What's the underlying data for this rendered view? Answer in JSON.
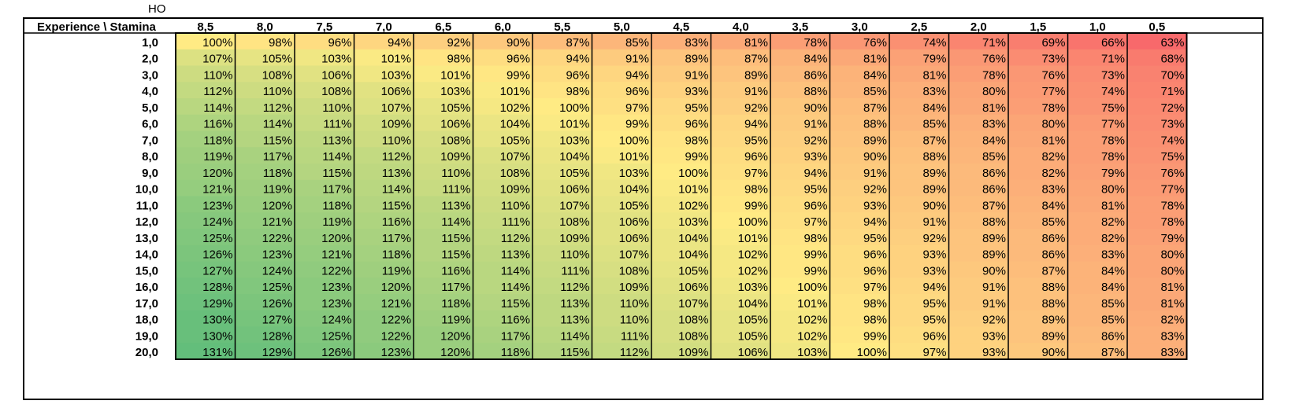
{
  "corner_label": "HO",
  "axis_title": "Experience \\ Stamina",
  "chart_data": {
    "type": "heatmap",
    "title": "",
    "xlabel": "Stamina",
    "ylabel": "Experience",
    "x": [
      "8,5",
      "8,0",
      "7,5",
      "7,0",
      "6,5",
      "6,0",
      "5,5",
      "5,0",
      "4,5",
      "4,0",
      "3,5",
      "3,0",
      "2,5",
      "2,0",
      "1,5",
      "1,0",
      "0,5"
    ],
    "y": [
      "1,0",
      "2,0",
      "3,0",
      "4,0",
      "5,0",
      "6,0",
      "7,0",
      "8,0",
      "9,0",
      "10,0",
      "11,0",
      "12,0",
      "13,0",
      "14,0",
      "15,0",
      "16,0",
      "17,0",
      "18,0",
      "19,0",
      "20,0"
    ],
    "value_suffix": "%",
    "values": [
      [
        100,
        98,
        96,
        94,
        92,
        90,
        87,
        85,
        83,
        81,
        78,
        76,
        74,
        71,
        69,
        66,
        63
      ],
      [
        107,
        105,
        103,
        101,
        98,
        96,
        94,
        91,
        89,
        87,
        84,
        81,
        79,
        76,
        73,
        71,
        68
      ],
      [
        110,
        108,
        106,
        103,
        101,
        99,
        96,
        94,
        91,
        89,
        86,
        84,
        81,
        78,
        76,
        73,
        70
      ],
      [
        112,
        110,
        108,
        106,
        103,
        101,
        98,
        96,
        93,
        91,
        88,
        85,
        83,
        80,
        77,
        74,
        71
      ],
      [
        114,
        112,
        110,
        107,
        105,
        102,
        100,
        97,
        95,
        92,
        90,
        87,
        84,
        81,
        78,
        75,
        72
      ],
      [
        116,
        114,
        111,
        109,
        106,
        104,
        101,
        99,
        96,
        94,
        91,
        88,
        85,
        83,
        80,
        77,
        73
      ],
      [
        118,
        115,
        113,
        110,
        108,
        105,
        103,
        100,
        98,
        95,
        92,
        89,
        87,
        84,
        81,
        78,
        74
      ],
      [
        119,
        117,
        114,
        112,
        109,
        107,
        104,
        101,
        99,
        96,
        93,
        90,
        88,
        85,
        82,
        78,
        75
      ],
      [
        120,
        118,
        115,
        113,
        110,
        108,
        105,
        103,
        100,
        97,
        94,
        91,
        89,
        86,
        82,
        79,
        76
      ],
      [
        121,
        119,
        117,
        114,
        111,
        109,
        106,
        104,
        101,
        98,
        95,
        92,
        89,
        86,
        83,
        80,
        77
      ],
      [
        123,
        120,
        118,
        115,
        113,
        110,
        107,
        105,
        102,
        99,
        96,
        93,
        90,
        87,
        84,
        81,
        78
      ],
      [
        124,
        121,
        119,
        116,
        114,
        111,
        108,
        106,
        103,
        100,
        97,
        94,
        91,
        88,
        85,
        82,
        78
      ],
      [
        125,
        122,
        120,
        117,
        115,
        112,
        109,
        106,
        104,
        101,
        98,
        95,
        92,
        89,
        86,
        82,
        79
      ],
      [
        126,
        123,
        121,
        118,
        115,
        113,
        110,
        107,
        104,
        102,
        99,
        96,
        93,
        89,
        86,
        83,
        80
      ],
      [
        127,
        124,
        122,
        119,
        116,
        114,
        111,
        108,
        105,
        102,
        99,
        96,
        93,
        90,
        87,
        84,
        80
      ],
      [
        128,
        125,
        123,
        120,
        117,
        114,
        112,
        109,
        106,
        103,
        100,
        97,
        94,
        91,
        88,
        84,
        81
      ],
      [
        129,
        126,
        123,
        121,
        118,
        115,
        113,
        110,
        107,
        104,
        101,
        98,
        95,
        91,
        88,
        85,
        81
      ],
      [
        130,
        127,
        124,
        122,
        119,
        116,
        113,
        110,
        108,
        105,
        102,
        98,
        95,
        92,
        89,
        85,
        82
      ],
      [
        130,
        128,
        125,
        122,
        120,
        117,
        114,
        111,
        108,
        105,
        102,
        99,
        96,
        93,
        89,
        86,
        83
      ],
      [
        131,
        129,
        126,
        123,
        120,
        118,
        115,
        112,
        109,
        106,
        103,
        100,
        97,
        93,
        90,
        87,
        83
      ]
    ],
    "color_scale": {
      "low": "#f8696b",
      "mid": "#ffeb84",
      "high": "#63be7b",
      "mid_value": 100
    }
  }
}
